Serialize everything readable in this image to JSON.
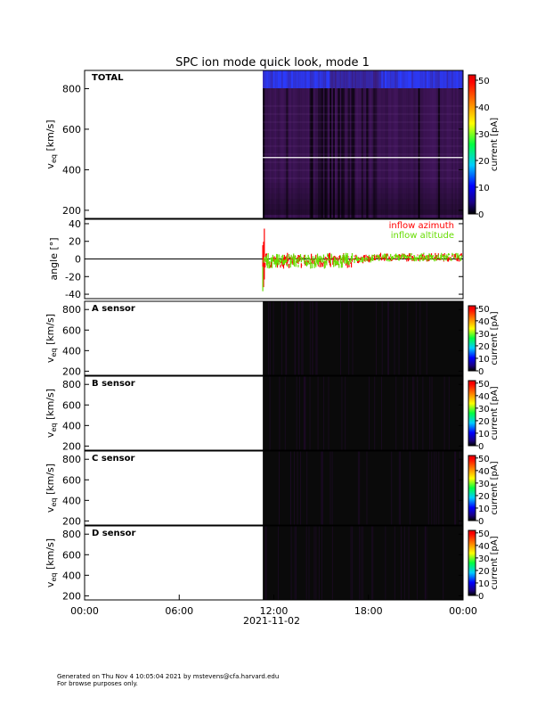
{
  "title": "SPC ion mode quick look, mode 1",
  "footer": {
    "line1": "Generated on Thu Nov  4 10:05:04 2021 by mstevens@cfa.harvard.edu",
    "line2": "For browse purposes only."
  },
  "chart_data": [
    {
      "type": "heatmap",
      "panel_label": "TOTAL",
      "ylabel": "v_eq [km/s]",
      "ylabel_main": "v",
      "ylabel_sub": "eq",
      "ylabel_unit": "[km/s]",
      "ylim": [
        160,
        890
      ],
      "yticks": [
        200,
        400,
        600,
        800
      ],
      "colorbar": {
        "label": "current [pA]",
        "range": [
          0,
          52
        ],
        "ticks": [
          0,
          10,
          20,
          30,
          40,
          50
        ]
      },
      "data_start_hours": 11.3,
      "white_line_v": 460
    },
    {
      "type": "line",
      "ylabel": "angle [°]",
      "ylim": [
        -45,
        45
      ],
      "yticks": [
        -40,
        -20,
        0,
        20,
        40
      ],
      "data_start_hours": 11.3,
      "series": [
        {
          "name": "inflow azimuth",
          "color": "#ff0000"
        },
        {
          "name": "inflow altitude",
          "color": "#66dd00"
        }
      ]
    },
    {
      "type": "heatmap",
      "panel_label": "A sensor",
      "ylim": [
        160,
        880
      ],
      "yticks": [
        200,
        400,
        600,
        800
      ],
      "data_start_hours": 11.3,
      "colorbar": {
        "label": "current [pA]",
        "range": [
          0,
          52
        ],
        "ticks": [
          0,
          10,
          20,
          30,
          40,
          50
        ]
      }
    },
    {
      "type": "heatmap",
      "panel_label": "B sensor",
      "ylim": [
        160,
        880
      ],
      "yticks": [
        200,
        400,
        600,
        800
      ],
      "data_start_hours": 11.3,
      "colorbar": {
        "label": "current [pA]",
        "range": [
          0,
          52
        ],
        "ticks": [
          0,
          10,
          20,
          30,
          40,
          50
        ]
      }
    },
    {
      "type": "heatmap",
      "panel_label": "C sensor",
      "ylim": [
        160,
        880
      ],
      "yticks": [
        200,
        400,
        600,
        800
      ],
      "data_start_hours": 11.3,
      "colorbar": {
        "label": "current [pA]",
        "range": [
          0,
          52
        ],
        "ticks": [
          0,
          10,
          20,
          30,
          40,
          50
        ]
      }
    },
    {
      "type": "heatmap",
      "panel_label": "D sensor",
      "ylim": [
        160,
        880
      ],
      "yticks": [
        200,
        400,
        600,
        800
      ],
      "data_start_hours": 11.3,
      "colorbar": {
        "label": "current [pA]",
        "range": [
          0,
          52
        ],
        "ticks": [
          0,
          10,
          20,
          30,
          40,
          50
        ]
      }
    }
  ],
  "x_axis": {
    "range_hours": [
      0,
      24
    ],
    "ticks": [
      0,
      6,
      12,
      18,
      24
    ],
    "tick_labels": [
      "00:00",
      "06:00",
      "12:00",
      "18:00",
      "00:00"
    ],
    "date_label": "2021-11-02"
  },
  "colors": {
    "spectrogram_base": "#40155a",
    "sensor_background": "#0a0a0a"
  }
}
